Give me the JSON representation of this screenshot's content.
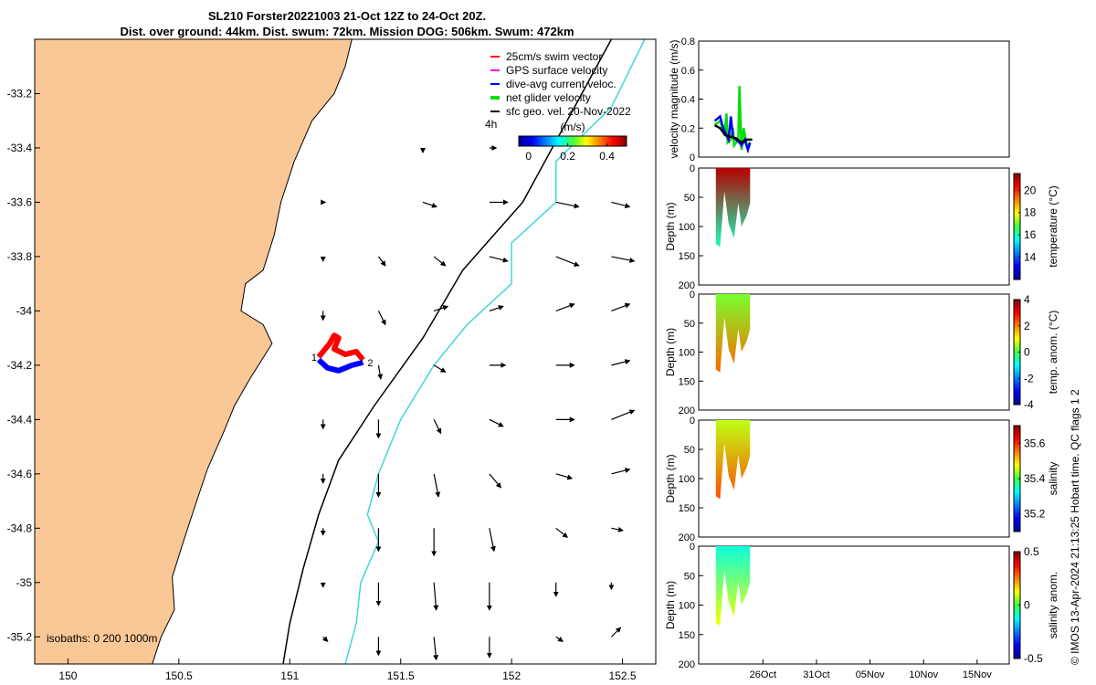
{
  "title_line1": "SL210 Forster20221003 21-Oct 12Z to 24-Oct 20Z.",
  "title_line2": "Dist. over ground: 44km. Dist. swum: 72km. Mission DOG: 506km. Swum: 472km",
  "credit": "© IMOS 13-Apr-2024 21:13:25 Hobart time. QC flags 1  2",
  "colors": {
    "land": "#f9c896",
    "isobath200": "#000000",
    "isobath1000": "#3fd8d8",
    "swim": "#ff0000",
    "gps": "#ff00ff",
    "dive": "#0000ff",
    "net": "#00e000",
    "geo": "#000000"
  },
  "chart_data": [
    {
      "type": "map",
      "xlim": [
        149.85,
        152.65
      ],
      "ylim": [
        -35.3,
        -33.0
      ],
      "xticks": [
        150,
        150.5,
        151,
        151.5,
        152,
        152.5
      ],
      "xtick_labels": [
        "150",
        "150.5",
        "151",
        "151.5",
        "152",
        "152.5"
      ],
      "yticks": [
        -33.2,
        -33.4,
        -33.6,
        -33.8,
        -34,
        -34.2,
        -34.4,
        -34.6,
        -34.8,
        -35,
        -35.2
      ],
      "ytick_labels": [
        "-33.2",
        "-33.4",
        "-33.6",
        "-33.8",
        "-34",
        "-34.2",
        "-34.4",
        "-34.6",
        "-34.8",
        "-35",
        "-35.2"
      ],
      "legend": [
        "25cm/s swim vector",
        "GPS surface velocity",
        "dive-avg current veloc.",
        "net glider velocity",
        "sfc geo. vel. 20-Nov-2022"
      ],
      "legend_note": "4h",
      "colorbar": {
        "label": "(m/s)",
        "ticks": [
          0,
          0.2,
          0.4
        ],
        "range": [
          -0.05,
          0.5
        ]
      },
      "isobaths_label": "isobaths: 0   200  1000m",
      "labels": {
        "track_1": "1",
        "track_2": "2"
      },
      "coastline": [
        [
          151.28,
          -33.0
        ],
        [
          151.25,
          -33.1
        ],
        [
          151.2,
          -33.2
        ],
        [
          151.1,
          -33.3
        ],
        [
          151.02,
          -33.45
        ],
        [
          150.96,
          -33.6
        ],
        [
          150.93,
          -33.72
        ],
        [
          150.88,
          -33.85
        ],
        [
          150.8,
          -33.9
        ],
        [
          150.78,
          -34.0
        ],
        [
          150.88,
          -34.05
        ],
        [
          150.92,
          -34.12
        ],
        [
          150.82,
          -34.25
        ],
        [
          150.75,
          -34.35
        ],
        [
          150.7,
          -34.45
        ],
        [
          150.63,
          -34.58
        ],
        [
          150.58,
          -34.7
        ],
        [
          150.52,
          -34.85
        ],
        [
          150.47,
          -34.98
        ],
        [
          150.48,
          -35.1
        ],
        [
          150.42,
          -35.2
        ],
        [
          150.38,
          -35.3
        ]
      ],
      "isobath_200": [
        [
          152.45,
          -33.0
        ],
        [
          152.25,
          -33.3
        ],
        [
          152.05,
          -33.6
        ],
        [
          151.78,
          -33.85
        ],
        [
          151.6,
          -34.1
        ],
        [
          151.38,
          -34.35
        ],
        [
          151.22,
          -34.55
        ],
        [
          151.13,
          -34.75
        ],
        [
          151.06,
          -34.95
        ],
        [
          151.0,
          -35.15
        ],
        [
          150.97,
          -35.3
        ]
      ],
      "isobath_1000": [
        [
          152.6,
          -33.0
        ],
        [
          152.45,
          -33.25
        ],
        [
          152.2,
          -33.45
        ],
        [
          152.2,
          -33.6
        ],
        [
          152.0,
          -33.75
        ],
        [
          152.0,
          -33.9
        ],
        [
          151.8,
          -34.05
        ],
        [
          151.65,
          -34.2
        ],
        [
          151.5,
          -34.4
        ],
        [
          151.4,
          -34.6
        ],
        [
          151.35,
          -34.75
        ],
        [
          151.4,
          -34.85
        ],
        [
          151.32,
          -35.0
        ],
        [
          151.3,
          -35.15
        ],
        [
          151.25,
          -35.3
        ]
      ],
      "geo_vectors": [
        [
          151.6,
          -33.4,
          0.0,
          -0.02
        ],
        [
          151.9,
          -33.4,
          0.03,
          0.0
        ],
        [
          151.15,
          -33.6,
          0.01,
          0.0
        ],
        [
          151.6,
          -33.6,
          0.06,
          -0.02
        ],
        [
          151.9,
          -33.6,
          0.08,
          0.0
        ],
        [
          152.2,
          -33.6,
          0.1,
          -0.02
        ],
        [
          152.45,
          -33.6,
          0.08,
          -0.02
        ],
        [
          151.15,
          -33.8,
          0.0,
          -0.02
        ],
        [
          151.4,
          -33.8,
          0.03,
          -0.04
        ],
        [
          151.65,
          -33.8,
          0.05,
          -0.04
        ],
        [
          151.9,
          -33.8,
          0.08,
          -0.02
        ],
        [
          152.2,
          -33.8,
          0.1,
          -0.04
        ],
        [
          152.45,
          -33.8,
          0.1,
          -0.02
        ],
        [
          151.15,
          -34.0,
          0.0,
          -0.04
        ],
        [
          151.4,
          -34.0,
          0.03,
          -0.06
        ],
        [
          151.65,
          -34.0,
          0.06,
          0.02
        ],
        [
          151.9,
          -34.0,
          0.06,
          0.02
        ],
        [
          152.2,
          -34.0,
          0.08,
          0.03
        ],
        [
          152.45,
          -34.0,
          0.08,
          0.03
        ],
        [
          151.4,
          -34.2,
          0.01,
          -0.06
        ],
        [
          151.65,
          -34.2,
          0.05,
          -0.03
        ],
        [
          151.9,
          -34.2,
          0.07,
          0.0
        ],
        [
          152.2,
          -34.2,
          0.08,
          0.0
        ],
        [
          152.45,
          -34.2,
          0.08,
          0.02
        ],
        [
          151.15,
          -34.4,
          0.0,
          -0.04
        ],
        [
          151.4,
          -34.4,
          0.0,
          -0.08
        ],
        [
          151.65,
          -34.4,
          0.03,
          -0.06
        ],
        [
          151.9,
          -34.4,
          0.06,
          -0.03
        ],
        [
          152.2,
          -34.4,
          0.08,
          0.0
        ],
        [
          152.45,
          -34.4,
          0.1,
          0.04
        ],
        [
          151.15,
          -34.6,
          0.0,
          -0.04
        ],
        [
          151.4,
          -34.6,
          0.0,
          -0.1
        ],
        [
          151.65,
          -34.6,
          0.02,
          -0.1
        ],
        [
          151.9,
          -34.6,
          0.05,
          -0.06
        ],
        [
          152.2,
          -34.6,
          0.07,
          -0.02
        ],
        [
          152.45,
          -34.6,
          0.08,
          0.02
        ],
        [
          151.15,
          -34.8,
          0.0,
          -0.03
        ],
        [
          151.4,
          -34.8,
          0.0,
          -0.1
        ],
        [
          151.65,
          -34.8,
          0.0,
          -0.12
        ],
        [
          151.9,
          -34.8,
          0.02,
          -0.1
        ],
        [
          152.2,
          -34.8,
          0.05,
          -0.04
        ],
        [
          152.45,
          -34.8,
          0.05,
          -0.01
        ],
        [
          151.15,
          -35.0,
          0.0,
          -0.02
        ],
        [
          151.4,
          -35.0,
          0.0,
          -0.1
        ],
        [
          151.65,
          -35.0,
          0.01,
          -0.12
        ],
        [
          151.9,
          -35.0,
          0.0,
          -0.12
        ],
        [
          152.2,
          -35.0,
          0.0,
          -0.06
        ],
        [
          152.45,
          -35.0,
          0.0,
          -0.03
        ],
        [
          151.15,
          -35.2,
          0.02,
          -0.02
        ],
        [
          151.4,
          -35.2,
          0.0,
          -0.08
        ],
        [
          151.65,
          -35.2,
          0.01,
          -0.1
        ],
        [
          151.9,
          -35.2,
          0.0,
          -0.09
        ],
        [
          152.2,
          -35.2,
          0.03,
          -0.02
        ],
        [
          152.45,
          -35.2,
          0.04,
          0.04
        ]
      ],
      "swim_track": [
        [
          151.13,
          -34.17
        ],
        [
          151.18,
          -34.12
        ],
        [
          151.2,
          -34.09
        ],
        [
          151.22,
          -34.1
        ],
        [
          151.2,
          -34.14
        ],
        [
          151.25,
          -34.16
        ],
        [
          151.3,
          -34.15
        ],
        [
          151.33,
          -34.18
        ]
      ],
      "dive_track": [
        [
          151.13,
          -34.18
        ],
        [
          151.17,
          -34.21
        ],
        [
          151.22,
          -34.22
        ],
        [
          151.28,
          -34.2
        ],
        [
          151.33,
          -34.19
        ]
      ]
    },
    {
      "type": "line",
      "ylabel": "velocity magnitude (m/s)",
      "ylim": [
        0,
        0.8
      ],
      "yticks": [
        0,
        0.2,
        0.4,
        0.6,
        0.8
      ],
      "series": [
        {
          "color": "#00e000",
          "x": [
            21.5,
            22.0,
            22.4,
            22.6,
            22.7,
            23.0,
            23.2,
            23.3,
            23.5,
            23.7,
            23.8,
            24.0,
            24.2,
            24.5,
            24.8
          ],
          "y": [
            0.22,
            0.25,
            0.15,
            0.3,
            0.1,
            0.12,
            0.2,
            0.08,
            0.1,
            0.12,
            0.49,
            0.05,
            0.2,
            0.08,
            0.1
          ]
        },
        {
          "color": "#0000ff",
          "x": [
            21.5,
            22.0,
            22.3,
            22.6,
            22.8,
            23.0,
            23.2,
            23.5,
            23.8,
            24.0,
            24.3,
            24.6,
            24.8
          ],
          "y": [
            0.25,
            0.28,
            0.2,
            0.15,
            0.12,
            0.28,
            0.14,
            0.12,
            0.1,
            0.08,
            0.12,
            0.05,
            0.1
          ]
        },
        {
          "color": "#000000",
          "x": [
            21.5,
            22.0,
            22.5,
            23.0,
            23.5,
            24.0,
            24.5,
            25.0
          ],
          "y": [
            0.22,
            0.2,
            0.15,
            0.14,
            0.13,
            0.1,
            0.12,
            0.12
          ]
        }
      ]
    },
    {
      "type": "heatmap",
      "ylabel": "Depth (m)",
      "clabel": "temperature (°C)",
      "ylim": [
        0,
        200
      ],
      "yticks": [
        0,
        50,
        100,
        150,
        200
      ],
      "crange": [
        12,
        21.5
      ],
      "cticks": [
        14,
        16,
        18,
        20
      ],
      "ctick_labels": [
        "14",
        "16",
        "18",
        "20"
      ],
      "top": 21,
      "bottom": 16,
      "dives": [
        [
          21.6,
          130
        ],
        [
          22.0,
          135
        ],
        [
          22.4,
          40
        ],
        [
          22.8,
          95
        ],
        [
          23.3,
          120
        ],
        [
          23.7,
          60
        ],
        [
          24.0,
          100
        ],
        [
          24.5,
          80
        ],
        [
          24.8,
          60
        ]
      ]
    },
    {
      "type": "heatmap",
      "ylabel": "Depth (m)",
      "clabel": "temp. anom. (°C)",
      "ylim": [
        0,
        200
      ],
      "yticks": [
        0,
        50,
        100,
        150,
        200
      ],
      "crange": [
        -4,
        4
      ],
      "cticks": [
        -4,
        -2,
        0,
        2,
        4
      ],
      "ctick_labels": [
        "-4",
        "-2",
        "0",
        "2",
        "4"
      ],
      "top": 0.3,
      "bottom": 2.2,
      "dives": [
        [
          21.6,
          130
        ],
        [
          22.0,
          135
        ],
        [
          22.4,
          40
        ],
        [
          22.8,
          95
        ],
        [
          23.3,
          120
        ],
        [
          23.7,
          60
        ],
        [
          24.0,
          100
        ],
        [
          24.5,
          80
        ],
        [
          24.8,
          60
        ]
      ]
    },
    {
      "type": "heatmap",
      "ylabel": "Depth (m)",
      "clabel": "salinity",
      "ylim": [
        0,
        200
      ],
      "yticks": [
        0,
        50,
        100,
        150,
        200
      ],
      "crange": [
        35.1,
        35.7
      ],
      "cticks": [
        35.2,
        35.4,
        35.6
      ],
      "ctick_labels": [
        "35.2",
        "35.4",
        "35.6"
      ],
      "top": 35.45,
      "bottom": 35.58,
      "dives": [
        [
          21.6,
          130
        ],
        [
          22.0,
          135
        ],
        [
          22.4,
          40
        ],
        [
          22.8,
          95
        ],
        [
          23.3,
          120
        ],
        [
          23.7,
          60
        ],
        [
          24.0,
          100
        ],
        [
          24.5,
          80
        ],
        [
          24.8,
          60
        ]
      ]
    },
    {
      "type": "heatmap",
      "ylabel": "Depth (m)",
      "clabel": "salinity anom.",
      "ylim": [
        0,
        200
      ],
      "yticks": [
        0,
        50,
        100,
        150,
        200
      ],
      "crange": [
        -0.5,
        0.5
      ],
      "cticks": [
        -0.5,
        0,
        0.5
      ],
      "ctick_labels": [
        "-0.5",
        "0",
        "0.5"
      ],
      "top": -0.1,
      "bottom": 0.12,
      "dives": [
        [
          21.6,
          130
        ],
        [
          22.0,
          135
        ],
        [
          22.4,
          40
        ],
        [
          22.8,
          95
        ],
        [
          23.3,
          120
        ],
        [
          23.7,
          60
        ],
        [
          24.0,
          100
        ],
        [
          24.5,
          80
        ],
        [
          24.8,
          60
        ]
      ]
    },
    {
      "type": "time_axis",
      "xlim": [
        20,
        49
      ],
      "xticks": [
        26,
        31,
        36,
        41,
        46
      ],
      "xtick_labels": [
        "26Oct",
        "31Oct",
        "05Nov",
        "10Nov",
        "15Nov"
      ]
    }
  ]
}
